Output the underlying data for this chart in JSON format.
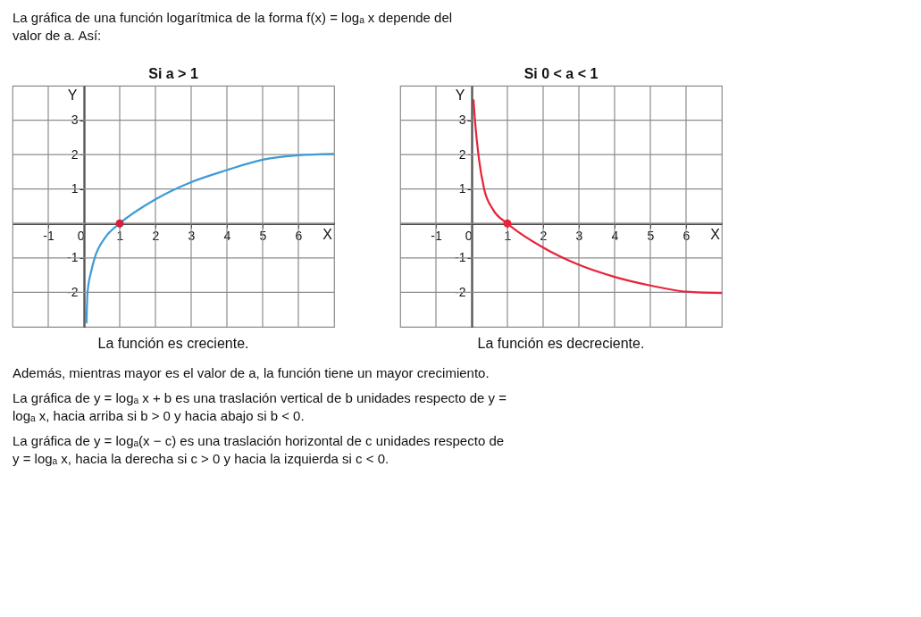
{
  "chart_data": [
    {
      "type": "line",
      "title": "Si a > 1",
      "xlabel": "X",
      "ylabel": "Y",
      "xlim": [
        -2,
        7
      ],
      "ylim": [
        -3,
        4
      ],
      "xticks": [
        -1,
        0,
        1,
        2,
        3,
        4,
        5,
        6
      ],
      "yticks": [
        -2,
        -1,
        {
          "value": 0,
          "label": null
        },
        1,
        2,
        3
      ],
      "grid": true,
      "legend": false,
      "line_style": "solid",
      "series": [
        {
          "color": "#3d9bd6",
          "x": [
            0.07,
            0.1,
            0.2,
            0.3,
            0.6,
            1,
            2,
            3,
            4,
            5,
            6,
            7
          ],
          "values": [
            -2.9,
            -2.0,
            -1.4,
            -1.0,
            -0.4,
            0,
            0.7,
            1.2,
            1.55,
            1.85,
            1.98,
            2.02
          ]
        },
        {
          "type": "scatter",
          "color": "#d9203a",
          "x": [
            1
          ],
          "values": [
            0
          ]
        }
      ],
      "annotations": [
        "La gráfica de una función logarítmica de la forma f(x) = logₐ x depende del valor de a. Así:",
        "La función es creciente."
      ]
    },
    {
      "type": "line",
      "title": "Si 0 < a < 1",
      "xlabel": "X",
      "ylabel": "Y",
      "xlim": [
        -2,
        7
      ],
      "ylim": [
        -3,
        4
      ],
      "xticks": [
        -1,
        0,
        1,
        2,
        3,
        4,
        5,
        6
      ],
      "yticks": [
        -2,
        -1,
        {
          "value": 0,
          "label": null
        },
        1,
        2,
        3
      ],
      "grid": true,
      "legend": false,
      "line_style": "solid",
      "series": [
        {
          "color": "#e8233b",
          "x": [
            0.05,
            0.1,
            0.2,
            0.35,
            0.6,
            1,
            2,
            3,
            4,
            5,
            6,
            7
          ],
          "values": [
            3.6,
            2.9,
            1.9,
            1.0,
            0.4,
            0,
            -0.7,
            -1.2,
            -1.55,
            -1.8,
            -1.98,
            -2.02
          ]
        },
        {
          "type": "scatter",
          "color": "#e8233b",
          "x": [
            1
          ],
          "values": [
            0
          ]
        }
      ],
      "annotations": [
        "La función es decreciente.",
        "Además, mientras mayor es el valor de a, la función tiene un mayor crecimiento.",
        "La gráfica de y = logₐ x + b es una traslación vertical de b unidades respecto de y = logₐ x, hacia arriba si b > 0 y hacia abajo si b < 0.",
        "La gráfica de y = logₐ(x − c) es una traslación horizontal de c unidades respecto de y = logₐ x, hacia la derecha si c > 0 y hacia la izquierda si c < 0."
      ]
    }
  ]
}
